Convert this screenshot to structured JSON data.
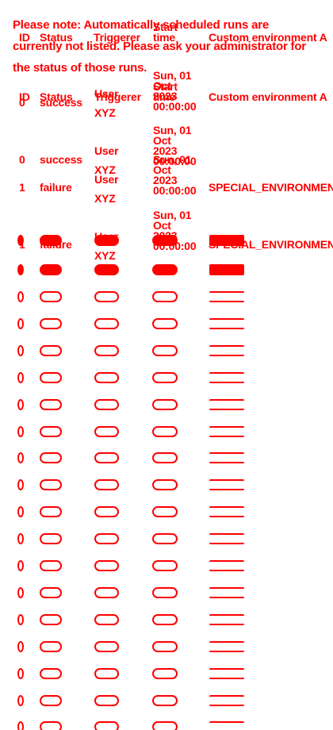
{
  "notice": {
    "text": "Please note: Automatically scheduled runs are currently not listed. Please ask your administrator for the status of those runs."
  },
  "table": {
    "columns": [
      "ID",
      "Status",
      "Triggerer",
      "Start time",
      "Custom environment A"
    ],
    "header_ghost": {
      "id": "ID",
      "status": "Status",
      "triggerer": "Triggerer",
      "start": "Start time",
      "env": "Custom environment A"
    },
    "rows": [
      {
        "id": "0",
        "status": "success",
        "triggerer": "User XYZ",
        "start": "Sun, 01 Oct 2023 00:00:00",
        "env": ""
      },
      {
        "id": "0",
        "status": "success",
        "triggerer": "User XYZ",
        "start": "Sun, 01 Oct 2023 00:00:00",
        "env": ""
      },
      {
        "id": "1",
        "status": "failure",
        "triggerer": "User XYZ",
        "start": "Sun, 01 Oct 2023 00:00:00",
        "env": "SPECIAL_ENVIRONMENT"
      },
      {
        "id": "1",
        "status": "failure",
        "triggerer": "User XYZ",
        "start": "Sun, 01 Oct 2023 00:00:00",
        "env": "SPECIAL_ENVIRONMENT"
      }
    ]
  },
  "skeleton": {
    "filled_rows": 2,
    "outlined_rows": 18
  },
  "colors": {
    "text": "#ff0000",
    "background": "#ffffff"
  }
}
